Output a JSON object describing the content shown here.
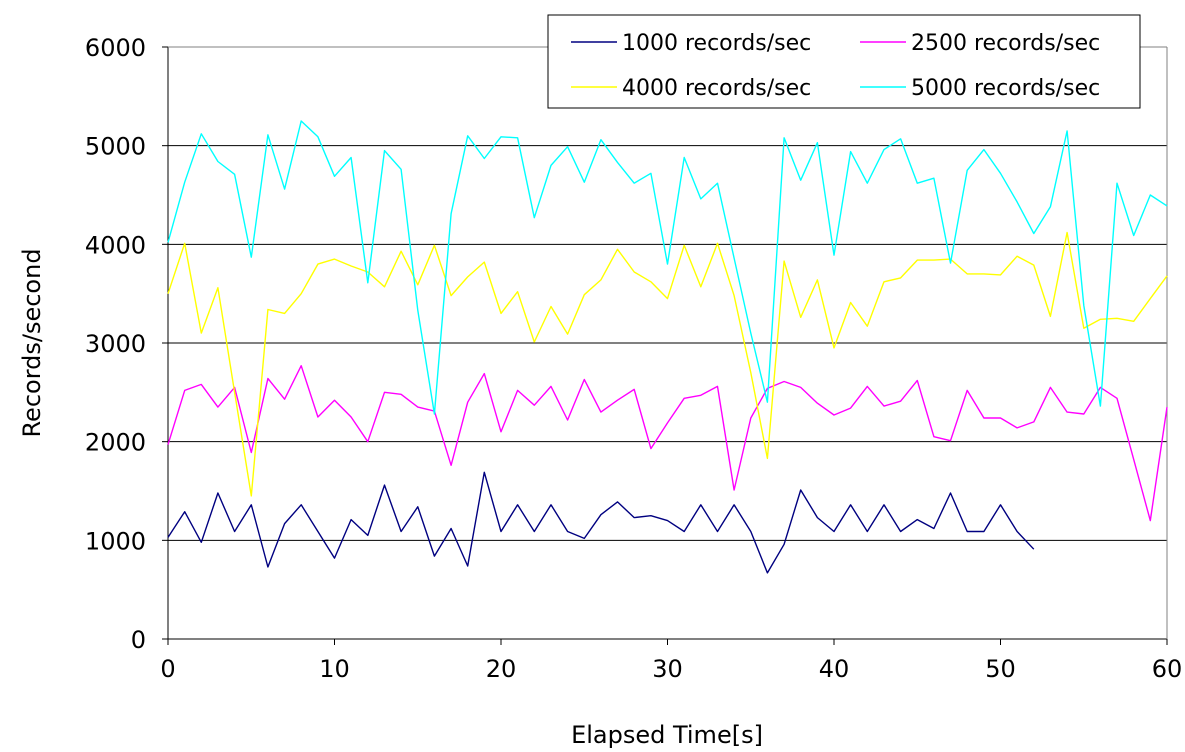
{
  "chart_data": {
    "type": "line",
    "xlabel": "Elapsed Time[s]",
    "ylabel": "Records/second",
    "xlim": [
      0,
      60
    ],
    "ylim": [
      0,
      6000
    ],
    "x_ticks": [
      "0",
      "10",
      "20",
      "30",
      "40",
      "50",
      "60"
    ],
    "y_ticks": [
      "0",
      "1000",
      "2000",
      "3000",
      "4000",
      "5000",
      "6000"
    ],
    "grid": "horizontal",
    "legend_position": "top-right",
    "series": [
      {
        "name": "1000 records/sec",
        "color": "#000080",
        "x": [
          0,
          1,
          2,
          3,
          4,
          5,
          6,
          7,
          8,
          9,
          10,
          11,
          12,
          13,
          14,
          15,
          16,
          17,
          18,
          19,
          20,
          21,
          22,
          23,
          24,
          25,
          26,
          27,
          28,
          29,
          30,
          31,
          32,
          33,
          34,
          35,
          36,
          37,
          38,
          39,
          40,
          41,
          42,
          43,
          44,
          45,
          46,
          47,
          48,
          49,
          50,
          51,
          52
        ],
        "values": [
          1030,
          1290,
          980,
          1480,
          1090,
          1360,
          730,
          1170,
          1360,
          1090,
          820,
          1210,
          1050,
          1560,
          1090,
          1340,
          840,
          1120,
          740,
          1690,
          1090,
          1360,
          1090,
          1360,
          1090,
          1020,
          1260,
          1390,
          1230,
          1250,
          1200,
          1090,
          1360,
          1090,
          1360,
          1090,
          670,
          960,
          1510,
          1230,
          1090,
          1360,
          1090,
          1360,
          1090,
          1210,
          1120,
          1480,
          1090,
          1090,
          1360,
          1090,
          910
        ]
      },
      {
        "name": "2500 records/sec",
        "color": "#ff00ff",
        "x": [
          0,
          1,
          2,
          3,
          4,
          5,
          6,
          7,
          8,
          9,
          10,
          11,
          12,
          13,
          14,
          15,
          16,
          17,
          18,
          19,
          20,
          21,
          22,
          23,
          24,
          25,
          26,
          27,
          28,
          29,
          30,
          31,
          32,
          33,
          34,
          35,
          36,
          37,
          38,
          39,
          40,
          41,
          42,
          43,
          44,
          45,
          46,
          47,
          48,
          49,
          50,
          51,
          52,
          53,
          54,
          55,
          56,
          57,
          58,
          59,
          60
        ],
        "values": [
          1970,
          2520,
          2580,
          2350,
          2550,
          1890,
          2640,
          2430,
          2770,
          2250,
          2420,
          2250,
          2000,
          2500,
          2480,
          2350,
          2310,
          1760,
          2400,
          2690,
          2100,
          2520,
          2370,
          2560,
          2220,
          2630,
          2300,
          2420,
          2530,
          1930,
          2190,
          2440,
          2470,
          2560,
          1510,
          2240,
          2540,
          2610,
          2550,
          2390,
          2270,
          2340,
          2560,
          2360,
          2410,
          2620,
          2050,
          2010,
          2520,
          2240,
          2240,
          2140,
          2200,
          2550,
          2300,
          2280,
          2550,
          2440,
          1820,
          1200,
          2350
        ]
      },
      {
        "name": "4000 records/sec",
        "color": "#ffff00",
        "x": [
          0,
          1,
          2,
          3,
          4,
          5,
          6,
          7,
          8,
          9,
          10,
          11,
          12,
          13,
          14,
          15,
          16,
          17,
          18,
          19,
          20,
          21,
          22,
          23,
          24,
          25,
          26,
          27,
          28,
          29,
          30,
          31,
          32,
          33,
          34,
          35,
          36,
          37,
          38,
          39,
          40,
          41,
          42,
          43,
          44,
          45,
          46,
          47,
          48,
          49,
          50,
          51,
          52,
          53,
          54,
          55,
          56,
          57,
          58,
          59,
          60
        ],
        "values": [
          3500,
          4010,
          3100,
          3560,
          2500,
          1450,
          3340,
          3300,
          3500,
          3800,
          3850,
          3780,
          3720,
          3570,
          3930,
          3590,
          3990,
          3480,
          3670,
          3820,
          3300,
          3520,
          3010,
          3370,
          3090,
          3490,
          3640,
          3950,
          3720,
          3620,
          3450,
          3990,
          3570,
          4010,
          3480,
          2700,
          1830,
          3830,
          3260,
          3640,
          2950,
          3410,
          3170,
          3620,
          3660,
          3840,
          3840,
          3850,
          3700,
          3700,
          3690,
          3880,
          3790,
          3270,
          4120,
          3150,
          3240,
          3250,
          3220,
          3450,
          3680
        ]
      },
      {
        "name": "5000 records/sec",
        "color": "#00ffff",
        "x": [
          0,
          1,
          2,
          3,
          4,
          5,
          6,
          7,
          8,
          9,
          10,
          11,
          12,
          13,
          14,
          15,
          16,
          17,
          18,
          19,
          20,
          21,
          22,
          23,
          24,
          25,
          26,
          27,
          28,
          29,
          30,
          31,
          32,
          33,
          34,
          35,
          36,
          37,
          38,
          39,
          40,
          41,
          42,
          43,
          44,
          45,
          46,
          47,
          48,
          49,
          50,
          51,
          52,
          53,
          54,
          55,
          56,
          57,
          58,
          59,
          60
        ],
        "values": [
          4020,
          4630,
          5120,
          4840,
          4710,
          3870,
          5110,
          4560,
          5250,
          5090,
          4690,
          4880,
          3610,
          4950,
          4760,
          3330,
          2280,
          4310,
          5100,
          4870,
          5090,
          5080,
          4270,
          4800,
          4990,
          4630,
          5060,
          4830,
          4620,
          4720,
          3800,
          4880,
          4460,
          4620,
          3860,
          3100,
          2400,
          5080,
          4650,
          5030,
          3890,
          4940,
          4620,
          4960,
          5070,
          4620,
          4670,
          3810,
          4750,
          4960,
          4720,
          4430,
          4110,
          4380,
          5150,
          3380,
          2360,
          4620,
          4090,
          4500,
          4390
        ]
      }
    ]
  }
}
